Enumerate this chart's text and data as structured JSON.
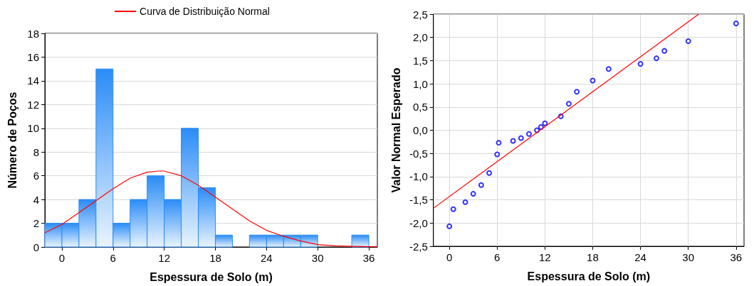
{
  "chart_data": [
    {
      "type": "histogram",
      "xlabel": "Espessura de Solo (m)",
      "ylabel": "Número de Poços",
      "bins": [
        -2,
        0,
        2,
        4,
        6,
        8,
        10,
        12,
        14,
        16,
        18,
        20,
        22,
        24,
        26,
        28,
        30,
        32,
        34,
        36
      ],
      "values": [
        2,
        2,
        4,
        15,
        2,
        4,
        6,
        4,
        10,
        5,
        1,
        0,
        1,
        1,
        1,
        1,
        0,
        0,
        1
      ],
      "color": "#2a8cf7",
      "xlim": [
        -2,
        37
      ],
      "xticks": [
        0,
        6,
        12,
        18,
        24,
        30,
        36
      ],
      "ylim": [
        0,
        18
      ],
      "yticks": [
        0,
        2,
        4,
        6,
        8,
        10,
        12,
        14,
        16,
        18
      ],
      "grid": "y",
      "legend": "top",
      "series": [
        {
          "type": "line",
          "name": "Curva de Distribuição Normal",
          "color": "#ff0000",
          "x": [
            -2,
            0,
            2,
            4,
            6,
            8,
            10,
            11.3,
            12,
            14,
            16,
            18,
            20,
            22,
            24,
            26,
            28,
            30,
            32,
            34,
            37
          ],
          "values": [
            1.2,
            1.9,
            2.9,
            3.9,
            4.9,
            5.8,
            6.3,
            6.4,
            6.4,
            6.0,
            5.2,
            4.2,
            3.2,
            2.2,
            1.4,
            0.9,
            0.5,
            0.2,
            0.1,
            0.05,
            0.01
          ]
        }
      ]
    },
    {
      "type": "scatter",
      "xlabel": "Espessura de Solo (m)",
      "ylabel": "Valor Normal Esperado",
      "xlim": [
        -2,
        37
      ],
      "xticks": [
        0,
        6,
        12,
        18,
        24,
        30,
        36
      ],
      "ylim": [
        -2.5,
        2.5
      ],
      "yticks": [
        {
          "value": -2.5,
          "label": "-2,5"
        },
        {
          "value": -2,
          "label": "-2,0"
        },
        {
          "value": -1.5,
          "label": "-1,5"
        },
        {
          "value": -1,
          "label": "-1,0"
        },
        {
          "value": -0.5,
          "label": "-0,5"
        },
        {
          "value": 0,
          "label": "0,0"
        },
        {
          "value": 0.5,
          "label": "0,5"
        },
        {
          "value": 1,
          "label": "1,0"
        },
        {
          "value": 1.5,
          "label": "1,5"
        },
        {
          "value": 2,
          "label": "2,0"
        },
        {
          "value": 2.5,
          "label": "2,5"
        }
      ],
      "grid": true,
      "series": [
        {
          "marker": "circle",
          "color": "#0000ff",
          "x": [
            0,
            0.5,
            2,
            3,
            4,
            5,
            6,
            6.2,
            8,
            9,
            10,
            11,
            11.5,
            12,
            14,
            15,
            16,
            18,
            20,
            24,
            26,
            27,
            30,
            36
          ],
          "values": [
            -2.07,
            -1.7,
            -1.55,
            -1.37,
            -1.18,
            -0.92,
            -0.52,
            -0.27,
            -0.23,
            -0.17,
            -0.08,
            0.0,
            0.07,
            0.15,
            0.3,
            0.57,
            0.83,
            1.07,
            1.32,
            1.43,
            1.55,
            1.71,
            1.92,
            2.3
          ]
        },
        {
          "type": "line",
          "color": "#ff0000",
          "x": [
            -2,
            31.3
          ],
          "values": [
            -1.68,
            2.5
          ]
        }
      ]
    }
  ]
}
